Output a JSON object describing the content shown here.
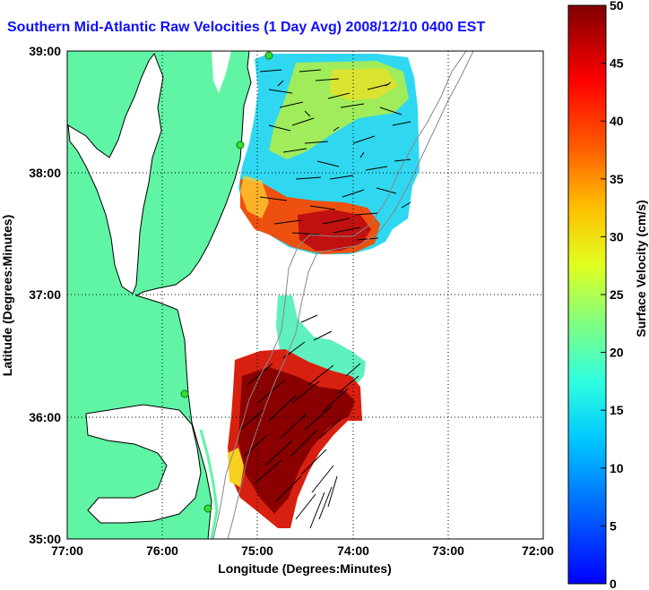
{
  "title": "Southern Mid-Atlantic Raw Velocities (1 Day Avg) 2008/12/10 0400 EST",
  "colors": {
    "land": "#5ff5a4",
    "title": "#1010ff",
    "coast": "#000000",
    "bathymetry": "#888888",
    "station": "#33dd33"
  },
  "map": {
    "x_axis": {
      "label": "Longitude (Degrees:Minutes)",
      "ticks": [
        "77:00",
        "76:00",
        "75:00",
        "74:00",
        "73:00",
        "72:00"
      ],
      "range": [
        -77,
        -72
      ]
    },
    "y_axis": {
      "label": "Latitude (Degrees:Minutes)",
      "ticks": [
        "39:00",
        "38:00",
        "37:00",
        "36:00",
        "35:00"
      ],
      "range": [
        35,
        39
      ]
    },
    "grid": "dotted"
  },
  "colorbar": {
    "label": "Surface Velocity (cm/s)",
    "ticks": [
      "50",
      "45",
      "40",
      "35",
      "30",
      "25",
      "20",
      "15",
      "10",
      "5",
      "0"
    ],
    "range": [
      0,
      50
    ],
    "colormap": "jet"
  }
}
